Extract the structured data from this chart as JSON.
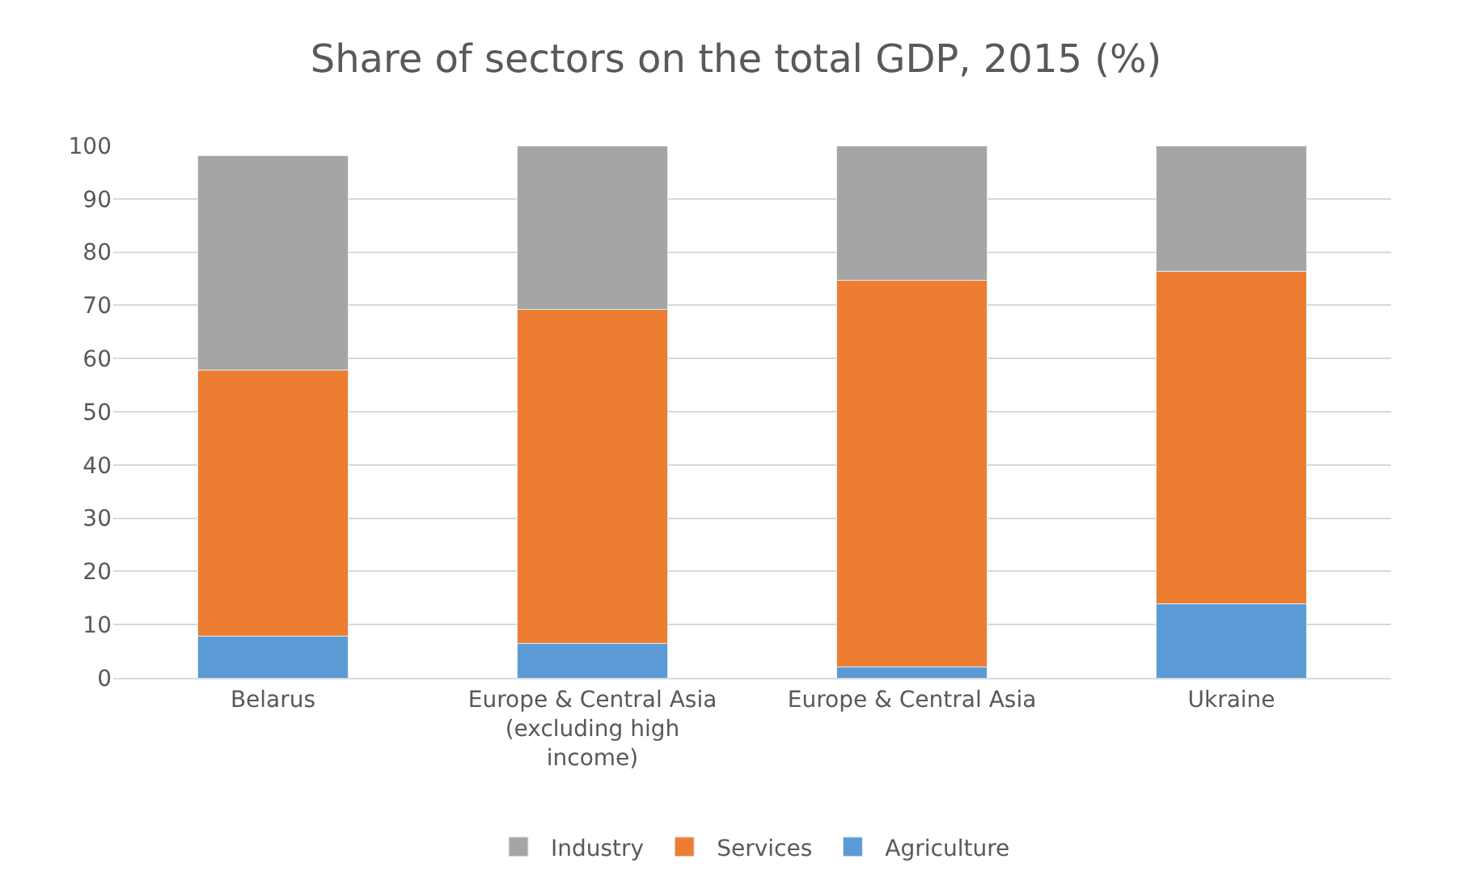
{
  "chart_data": {
    "type": "bar",
    "title": "Share of sectors on the total GDP, 2015 (%)",
    "stacked": true,
    "categories": [
      "Belarus",
      "Europe & Central Asia (excluding high income)",
      "Europe & Central Asia",
      "Ukraine"
    ],
    "series": [
      {
        "name": "Agriculture",
        "color": "#5b9bd5",
        "values": [
          7.9,
          6.5,
          2.1,
          13.9
        ]
      },
      {
        "name": "Services",
        "color": "#ed7d31",
        "values": [
          49.9,
          62.7,
          72.6,
          62.5
        ]
      },
      {
        "name": "Industry",
        "color": "#a5a5a5",
        "values": [
          40.3,
          30.8,
          25.3,
          23.6
        ]
      }
    ],
    "ylim": [
      0,
      100
    ],
    "yticks": [
      0,
      10,
      20,
      30,
      40,
      50,
      60,
      70,
      80,
      90,
      100
    ],
    "grid": "y",
    "legend": "bottom"
  }
}
